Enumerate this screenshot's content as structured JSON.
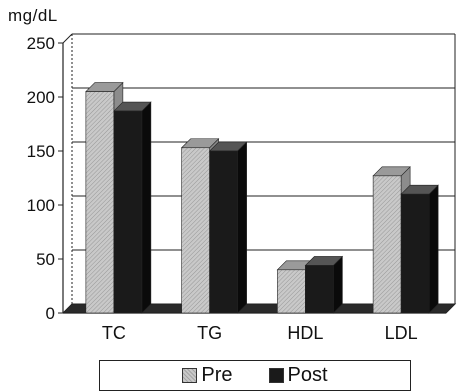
{
  "chart_data": {
    "type": "bar",
    "ylabel": "mg/dL",
    "categories": [
      "TC",
      "TG",
      "HDL",
      "LDL"
    ],
    "series": [
      {
        "name": "Pre",
        "values": [
          205,
          153,
          40,
          127
        ],
        "color": "#c8c8c8"
      },
      {
        "name": "Post",
        "values": [
          187,
          150,
          44,
          110
        ],
        "color": "#1a1a1a"
      }
    ],
    "yticks": [
      0,
      50,
      100,
      150,
      200,
      250
    ],
    "ylim": [
      0,
      250
    ],
    "grid": true,
    "legend_position": "bottom"
  }
}
